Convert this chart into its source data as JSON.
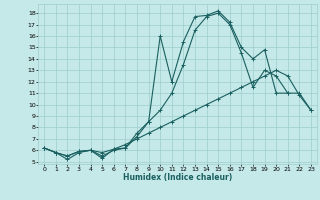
{
  "xlabel": "Humidex (Indice chaleur)",
  "xlim": [
    -0.5,
    23.5
  ],
  "ylim": [
    4.8,
    18.8
  ],
  "yticks": [
    5,
    6,
    7,
    8,
    9,
    10,
    11,
    12,
    13,
    14,
    15,
    16,
    17,
    18
  ],
  "xticks": [
    0,
    1,
    2,
    3,
    4,
    5,
    6,
    7,
    8,
    9,
    10,
    11,
    12,
    13,
    14,
    15,
    16,
    17,
    18,
    19,
    20,
    21,
    22,
    23
  ],
  "background_color": "#c5e8e8",
  "grid_color": "#9ecece",
  "line_color": "#1a6060",
  "line1_x": [
    0,
    1,
    2,
    3,
    4,
    5,
    6,
    7,
    8,
    9,
    10,
    11,
    12,
    13,
    14,
    15,
    16,
    17,
    18,
    19,
    20,
    21
  ],
  "line1_y": [
    6.2,
    5.8,
    5.2,
    5.8,
    6.0,
    5.3,
    6.1,
    6.2,
    7.5,
    8.5,
    16.0,
    12.0,
    15.5,
    17.7,
    17.8,
    18.2,
    17.2,
    15.0,
    14.0,
    14.8,
    11.0,
    11.0
  ],
  "line2_x": [
    0,
    1,
    2,
    3,
    4,
    5,
    6,
    7,
    8,
    9,
    10,
    11,
    12,
    13,
    14,
    15,
    16,
    17,
    18,
    19,
    20,
    21,
    22,
    23
  ],
  "line2_y": [
    6.2,
    5.8,
    5.5,
    5.9,
    6.0,
    5.5,
    6.0,
    6.2,
    7.2,
    8.5,
    9.5,
    11.0,
    13.5,
    16.5,
    17.7,
    18.0,
    17.0,
    14.5,
    11.5,
    13.0,
    12.5,
    11.0,
    11.0,
    9.5
  ],
  "line3_x": [
    0,
    1,
    2,
    3,
    4,
    5,
    6,
    7,
    8,
    9,
    10,
    11,
    12,
    13,
    14,
    15,
    16,
    17,
    18,
    19,
    20,
    21,
    22,
    23
  ],
  "line3_y": [
    6.2,
    5.8,
    5.5,
    5.9,
    6.0,
    5.8,
    6.1,
    6.5,
    7.0,
    7.5,
    8.0,
    8.5,
    9.0,
    9.5,
    10.0,
    10.5,
    11.0,
    11.5,
    12.0,
    12.5,
    13.0,
    12.5,
    10.8,
    9.5
  ]
}
